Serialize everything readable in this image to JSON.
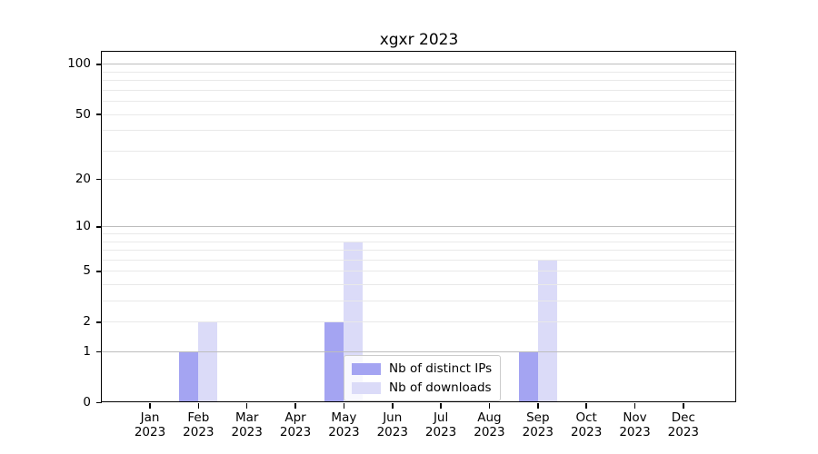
{
  "chart_data": {
    "type": "bar",
    "title": "xgxr 2023",
    "categories": [
      {
        "month": "Jan",
        "year": "2023"
      },
      {
        "month": "Feb",
        "year": "2023"
      },
      {
        "month": "Mar",
        "year": "2023"
      },
      {
        "month": "Apr",
        "year": "2023"
      },
      {
        "month": "May",
        "year": "2023"
      },
      {
        "month": "Jun",
        "year": "2023"
      },
      {
        "month": "Jul",
        "year": "2023"
      },
      {
        "month": "Aug",
        "year": "2023"
      },
      {
        "month": "Sep",
        "year": "2023"
      },
      {
        "month": "Oct",
        "year": "2023"
      },
      {
        "month": "Nov",
        "year": "2023"
      },
      {
        "month": "Dec",
        "year": "2023"
      }
    ],
    "series": [
      {
        "name": "Nb of distinct IPs",
        "color": "#a4a4f2",
        "values": [
          0,
          1,
          0,
          0,
          2,
          0,
          0,
          0,
          1,
          0,
          0,
          0
        ]
      },
      {
        "name": "Nb of downloads",
        "color": "#dbdbf8",
        "values": [
          0,
          2,
          0,
          0,
          8,
          0,
          0,
          0,
          6,
          0,
          0,
          0
        ]
      }
    ],
    "yscale": "log1p",
    "ylim": [
      0,
      119
    ],
    "yticks": [
      0,
      1,
      2,
      5,
      10,
      20,
      50,
      100
    ],
    "grid": {
      "major_values": [
        1,
        10,
        100
      ],
      "minor_values": [
        2,
        3,
        4,
        5,
        6,
        7,
        8,
        9,
        20,
        30,
        40,
        50,
        60,
        70,
        80,
        90
      ],
      "major_color": "#bdbdbd",
      "minor_color": "#e9e9e9"
    },
    "legend_position": "lower center",
    "axis_color": "#000000",
    "background": "#ffffff"
  }
}
